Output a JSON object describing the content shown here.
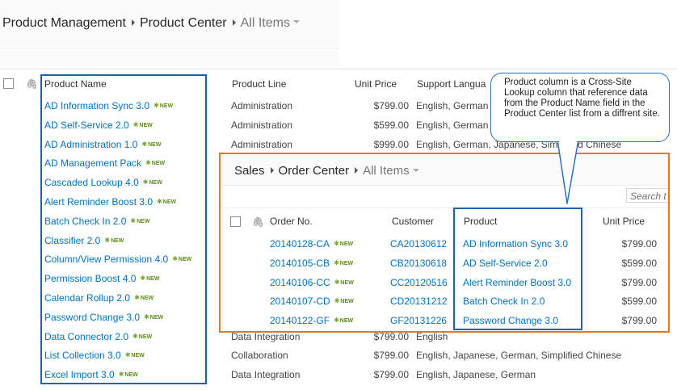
{
  "breadcrumb": {
    "items": [
      "Product Management",
      "Product Center"
    ],
    "current": "All Items"
  },
  "product_list": {
    "columns": {
      "product_name": "Product Name",
      "product_line": "Product Line",
      "unit_price": "Unit Price",
      "support_languages": "Support Langua"
    },
    "new_badge": "NEW",
    "rows": [
      {
        "name": "AD Information Sync 3.0",
        "line": "Administration",
        "price": "$799.00",
        "langs": "English, German"
      },
      {
        "name": "AD Self-Service 2.0",
        "line": "Administration",
        "price": "$599.00",
        "langs": "English, German"
      },
      {
        "name": "AD Administration 1.0",
        "line": "Administration",
        "price": "$999.00",
        "langs": "English, German, Japanese, Simplified Chinese"
      },
      {
        "name": "AD Management Pack",
        "line": "",
        "price": "",
        "langs": ""
      },
      {
        "name": "Cascaded Lookup 4.0",
        "line": "",
        "price": "",
        "langs": ""
      },
      {
        "name": "Alert Reminder Boost 3.0",
        "line": "",
        "price": "",
        "langs": ""
      },
      {
        "name": "Batch Check In 2.0",
        "line": "",
        "price": "",
        "langs": ""
      },
      {
        "name": "Classifier 2.0",
        "line": "",
        "price": "",
        "langs": ""
      },
      {
        "name": "Column/View Permission 4.0",
        "line": "",
        "price": "",
        "langs": ""
      },
      {
        "name": "Permission Boost 4.0",
        "line": "",
        "price": "",
        "langs": ""
      },
      {
        "name": "Calendar Rollup 2.0",
        "line": "",
        "price": "",
        "langs": ""
      },
      {
        "name": "Password Change 3.0",
        "line": "",
        "price": "",
        "langs": ""
      },
      {
        "name": "Data Connector 2.0",
        "line": "Data Integration",
        "price": "$799.00",
        "langs": "English"
      },
      {
        "name": "List Collection 3.0",
        "line": "Collaboration",
        "price": "$799.00",
        "langs": "English, Japanese, German, Simplified Chinese"
      },
      {
        "name": "Excel Import 3.0",
        "line": "Data Integration",
        "price": "$799.00",
        "langs": "English, Japanese, German"
      }
    ]
  },
  "order_center": {
    "breadcrumb": {
      "items": [
        "Sales",
        "Order Center"
      ],
      "current": "All Items"
    },
    "search_placeholder": "Search t",
    "columns": {
      "order_no": "Order No.",
      "customer": "Customer",
      "product": "Product",
      "unit_price": "Unit Price"
    },
    "new_badge": "NEW",
    "rows": [
      {
        "order": "20140128-CA",
        "customer": "CA20130612",
        "product": "AD Information Sync 3.0",
        "price": "$799.00"
      },
      {
        "order": "20140105-CB",
        "customer": "CB20130618",
        "product": "AD Self-Service 2.0",
        "price": "$599.00"
      },
      {
        "order": "20140106-CC",
        "customer": "CC20120516",
        "product": "Alert Reminder Boost 3.0",
        "price": "$799.00"
      },
      {
        "order": "20140107-CD",
        "customer": "CD20131212",
        "product": "Batch Check In 2.0",
        "price": "$599.00"
      },
      {
        "order": "20140122-GF",
        "customer": "GF20131226",
        "product": "Password Change 3.0",
        "price": "$799.00"
      }
    ]
  },
  "callout": {
    "text": "Product column is a Cross-Site Lookup column that reference data from the Product Name field in the Product Center list from a diffrent site."
  },
  "colors": {
    "link": "#0072c6",
    "highlight_outline": "#1f5fb4",
    "inset_outline": "#e07a1f",
    "new_badge": "#5d8c1b"
  }
}
